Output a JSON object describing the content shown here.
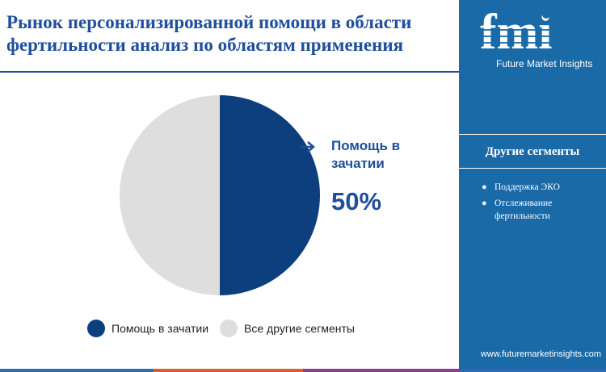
{
  "title": "Рынок персонализированной помощи в области фертильности анализ по областям применения",
  "brand": {
    "logo_text": "fmi",
    "name": "Future Market Insights",
    "website": "www.futuremarketinsights.com"
  },
  "sidebar": {
    "heading": "Другие сегменты",
    "items": [
      "Поддержка ЭКО",
      "Отслеживание фертильности"
    ]
  },
  "annotation": {
    "label": "Помощь в зачатии",
    "value": "50%"
  },
  "colors": {
    "primary": "#0d3f7f",
    "secondary": "#dedede",
    "title": "#1f4e9c",
    "sidebar": "#1a6aa8"
  },
  "chart_data": {
    "type": "pie",
    "title": "",
    "categories": [
      "Помощь в зачатии",
      "Все другие сегменты"
    ],
    "values": [
      50,
      50
    ],
    "legend": [
      "Помощь в зачатии",
      "Все другие сегменты"
    ],
    "legend_position": "bottom",
    "colors": [
      "#0d3f7f",
      "#dedede"
    ]
  }
}
